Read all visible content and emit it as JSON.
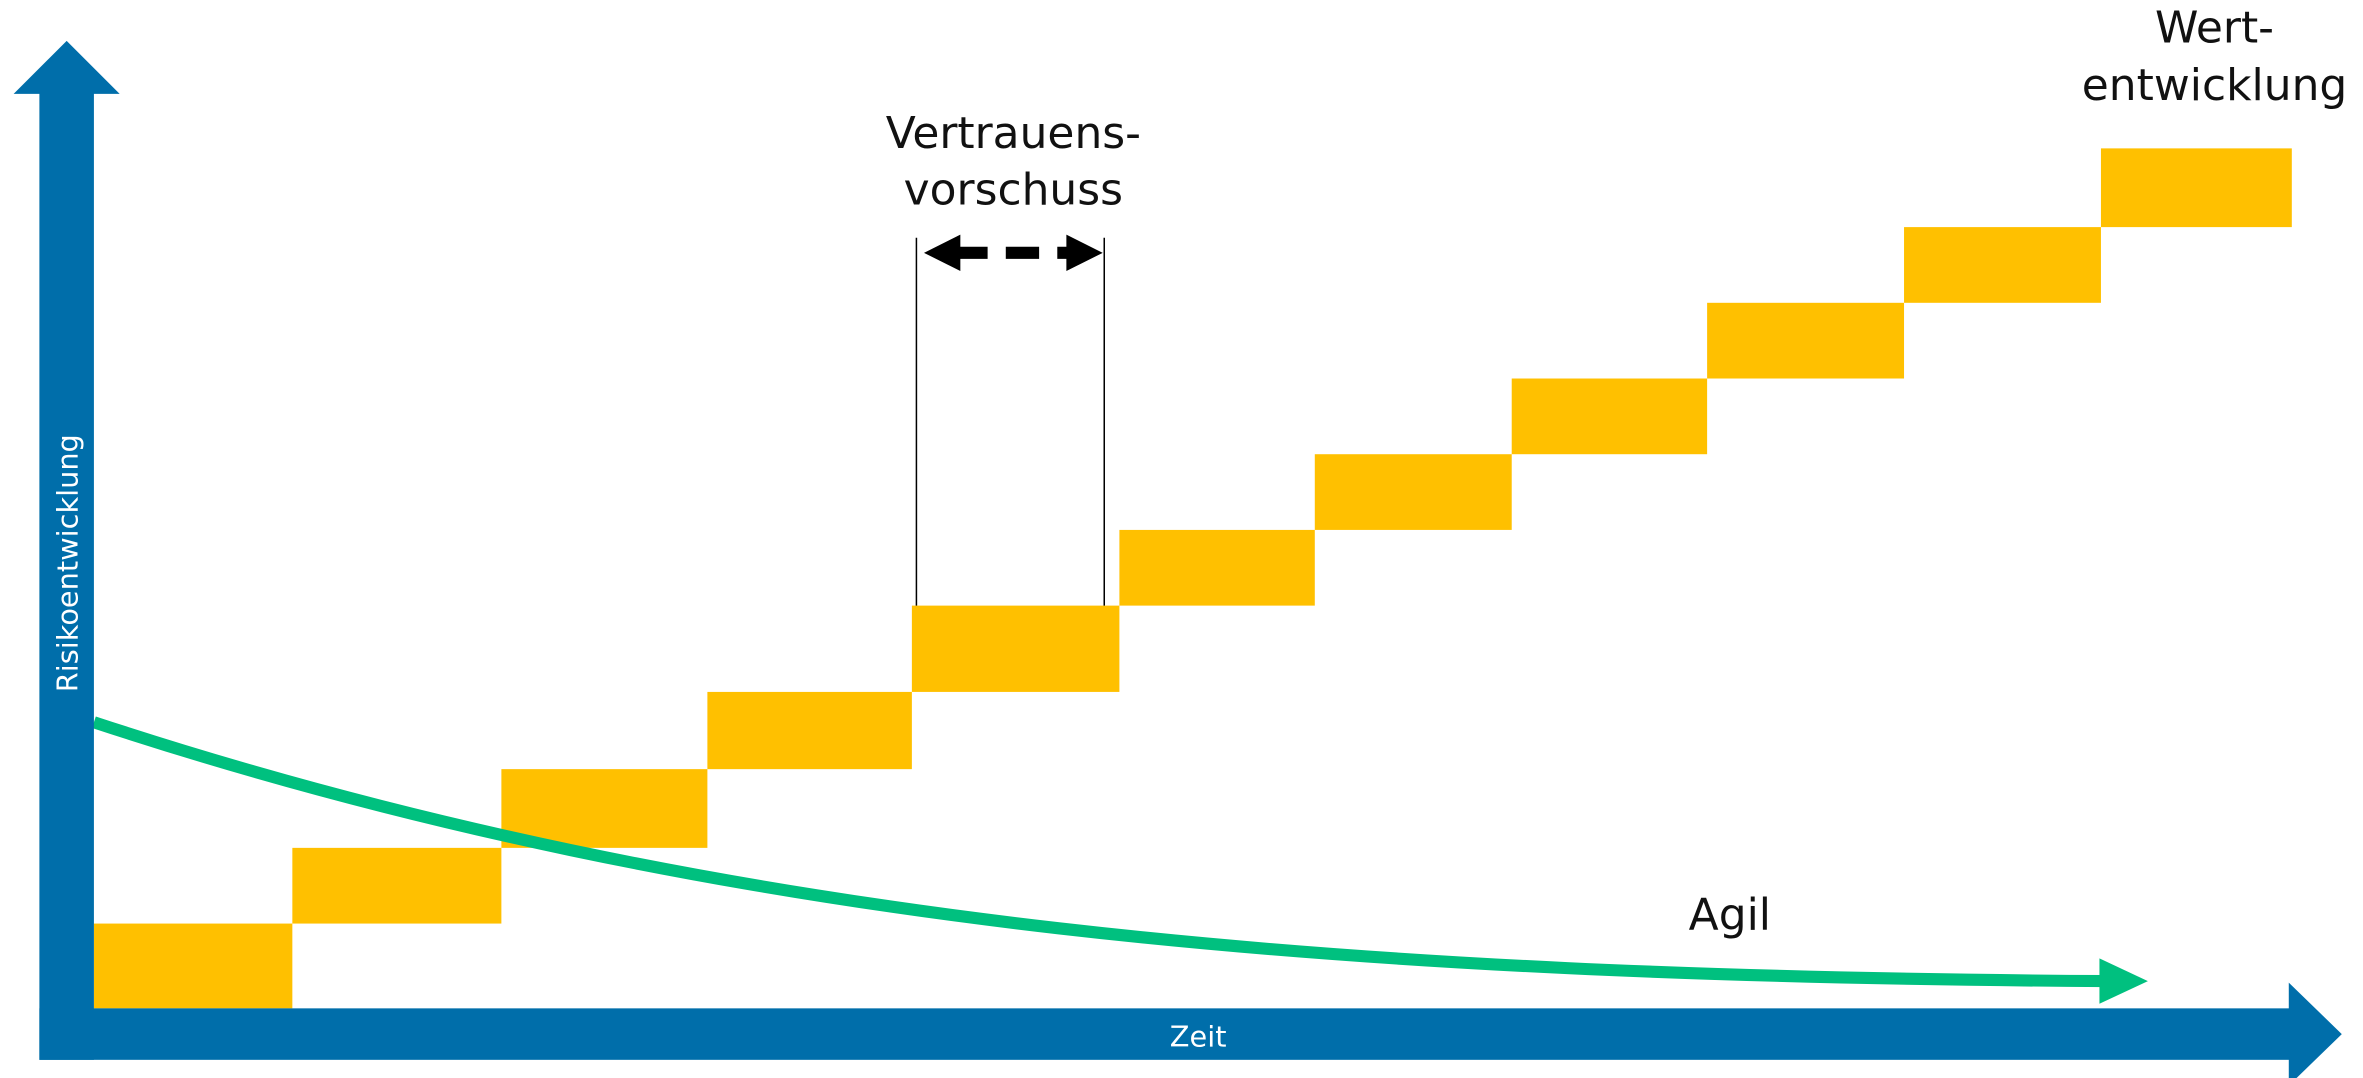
{
  "value_label": {
    "line1": "Wert-",
    "line2": "entwicklung"
  },
  "gap_label": {
    "line1": "Vertrauens-",
    "line2": "vorschuss"
  },
  "y_axis_label": "Risikoentwicklung",
  "x_axis_label": "Zeit",
  "curve_label": "Agil"
}
